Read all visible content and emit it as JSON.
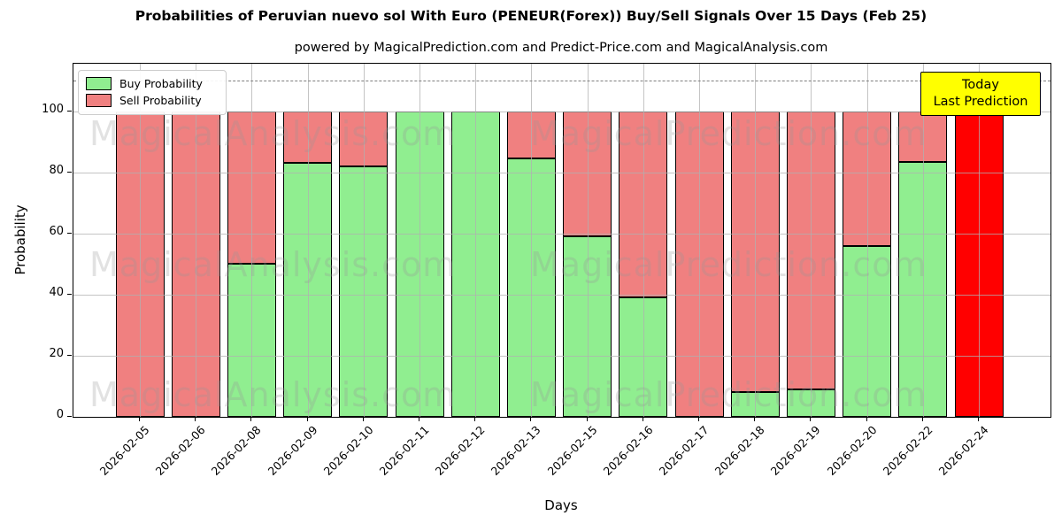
{
  "title": "Probabilities of Peruvian nuevo sol With Euro (PENEUR(Forex)) Buy/Sell Signals Over 15 Days (Feb 25)",
  "subtitle": "powered by MagicalPrediction.com and Predict-Price.com and MagicalAnalysis.com",
  "legend": {
    "items": [
      {
        "label": "Buy Probability",
        "color": "#90ee90"
      },
      {
        "label": "Sell Probability",
        "color": "#f08080"
      }
    ]
  },
  "annotation_box": {
    "line1": "Today",
    "line2": "Last Prediction",
    "bg_color": "#ffff00"
  },
  "watermarks": {
    "left_text": "MagicalAnalysis.com",
    "right_text": "MagicalPrediction.com"
  },
  "axes": {
    "x_label": "Days",
    "y_label": "Probability",
    "y_ticks": [
      0,
      20,
      40,
      60,
      80,
      100
    ]
  },
  "chart_data": {
    "type": "bar",
    "stacked": true,
    "title": "Probabilities of Peruvian nuevo sol With Euro (PENEUR(Forex)) Buy/Sell Signals Over 15 Days (Feb 25)",
    "xlabel": "Days",
    "ylabel": "Probability",
    "ylim": [
      0,
      115.5
    ],
    "grid": true,
    "legend_position": "upper left",
    "categories": [
      "2026-02-05",
      "2026-02-06",
      "2026-02-08",
      "2026-02-09",
      "2026-02-10",
      "2026-02-11",
      "2026-02-12",
      "2026-02-13",
      "2026-02-15",
      "2026-02-16",
      "2026-02-17",
      "2026-02-18",
      "2026-02-19",
      "2026-02-20",
      "2026-02-22",
      "2026-02-24"
    ],
    "series": [
      {
        "name": "Buy Probability",
        "color": "#90ee90",
        "values": [
          0,
          0,
          50,
          83,
          82,
          100,
          100,
          84.5,
          59,
          39,
          0,
          8,
          9,
          56,
          83.5,
          0
        ]
      },
      {
        "name": "Sell Probability",
        "color": "#f08080",
        "values": [
          100,
          100,
          50,
          17,
          18,
          0,
          0,
          15.5,
          41,
          61,
          100,
          92,
          91,
          44,
          16.5,
          0
        ]
      }
    ],
    "today_bar": {
      "index": 15,
      "category": "2026-02-24",
      "value": 100,
      "color": "#ff0000"
    },
    "reference_line": {
      "y": 110,
      "style": "dashed",
      "color": "#7f7f7f"
    }
  }
}
